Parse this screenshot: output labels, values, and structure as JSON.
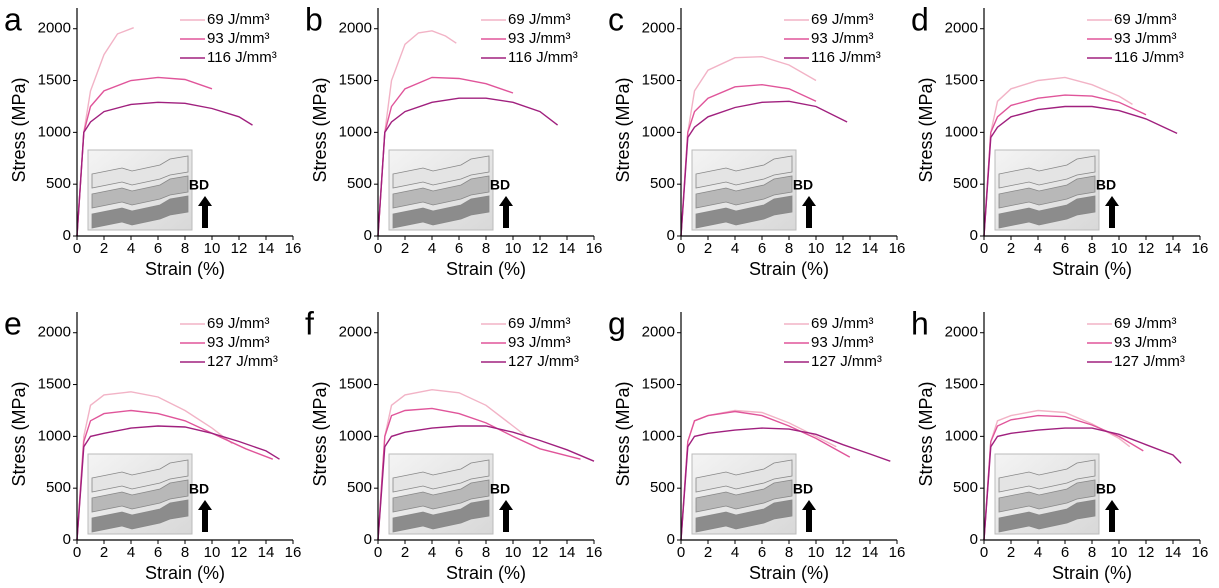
{
  "chart_data": [
    {
      "type": "line",
      "label": "a",
      "annotation": "BD",
      "xlabel": "Strain (%)",
      "ylabel": "Stress (MPa)",
      "xlim": [
        0,
        16
      ],
      "ylim": [
        0,
        2200
      ],
      "xticks": [
        0,
        2,
        4,
        6,
        8,
        10,
        12,
        14,
        16
      ],
      "yticks": [
        0,
        500,
        1000,
        1500,
        2000
      ],
      "series": [
        {
          "name": "69 J/mm³",
          "color": "#f2b3c6",
          "x": [
            0,
            0.5,
            1,
            2,
            3,
            4.2
          ],
          "values": [
            0,
            1000,
            1400,
            1750,
            1950,
            2010
          ]
        },
        {
          "name": "93 J/mm³",
          "color": "#e0559a",
          "x": [
            0,
            0.5,
            1,
            2,
            4,
            6,
            8,
            10
          ],
          "values": [
            0,
            1000,
            1250,
            1400,
            1500,
            1530,
            1510,
            1420
          ]
        },
        {
          "name": "116 J/mm³",
          "color": "#a0207e",
          "x": [
            0,
            0.5,
            1,
            2,
            4,
            6,
            8,
            10,
            12,
            13
          ],
          "values": [
            0,
            1000,
            1100,
            1200,
            1270,
            1290,
            1280,
            1230,
            1150,
            1070
          ]
        }
      ]
    },
    {
      "type": "line",
      "label": "b",
      "annotation": "BD",
      "xlabel": "Strain (%)",
      "ylabel": "Stress (MPa)",
      "xlim": [
        0,
        16
      ],
      "ylim": [
        0,
        2200
      ],
      "xticks": [
        0,
        2,
        4,
        6,
        8,
        10,
        12,
        14,
        16
      ],
      "yticks": [
        0,
        500,
        1000,
        1500,
        2000
      ],
      "series": [
        {
          "name": "69 J/mm³",
          "color": "#f2b3c6",
          "x": [
            0,
            0.5,
            1,
            2,
            3,
            4,
            5,
            5.8
          ],
          "values": [
            0,
            1000,
            1500,
            1850,
            1960,
            1980,
            1930,
            1860
          ]
        },
        {
          "name": "93 J/mm³",
          "color": "#e0559a",
          "x": [
            0,
            0.5,
            1,
            2,
            4,
            6,
            8,
            10
          ],
          "values": [
            0,
            1000,
            1250,
            1420,
            1530,
            1520,
            1470,
            1380
          ]
        },
        {
          "name": "116 J/mm³",
          "color": "#a0207e",
          "x": [
            0,
            0.5,
            1,
            2,
            4,
            6,
            8,
            10,
            12,
            13.3
          ],
          "values": [
            0,
            1000,
            1100,
            1200,
            1290,
            1330,
            1330,
            1290,
            1200,
            1070
          ]
        }
      ]
    },
    {
      "type": "line",
      "label": "c",
      "annotation": "BD",
      "xlabel": "Strain (%)",
      "ylabel": "Stress (MPa)",
      "xlim": [
        0,
        16
      ],
      "ylim": [
        0,
        2200
      ],
      "xticks": [
        0,
        2,
        4,
        6,
        8,
        10,
        12,
        14,
        16
      ],
      "yticks": [
        0,
        500,
        1000,
        1500,
        2000
      ],
      "series": [
        {
          "name": "69 J/mm³",
          "color": "#f2b3c6",
          "x": [
            0,
            0.5,
            1,
            2,
            4,
            6,
            8,
            10
          ],
          "values": [
            0,
            1000,
            1400,
            1600,
            1720,
            1730,
            1650,
            1500
          ]
        },
        {
          "name": "93 J/mm³",
          "color": "#e0559a",
          "x": [
            0,
            0.5,
            1,
            2,
            4,
            6,
            8,
            10
          ],
          "values": [
            0,
            1000,
            1200,
            1330,
            1440,
            1460,
            1420,
            1300
          ]
        },
        {
          "name": "116 J/mm³",
          "color": "#a0207e",
          "x": [
            0,
            0.5,
            1,
            2,
            4,
            6,
            8,
            10,
            12.3
          ],
          "values": [
            0,
            950,
            1050,
            1150,
            1240,
            1290,
            1300,
            1250,
            1100
          ]
        }
      ]
    },
    {
      "type": "line",
      "label": "d",
      "annotation": "BD",
      "xlabel": "Strain (%)",
      "ylabel": "Stress (MPa)",
      "xlim": [
        0,
        16
      ],
      "ylim": [
        0,
        2200
      ],
      "xticks": [
        0,
        2,
        4,
        6,
        8,
        10,
        12,
        14,
        16
      ],
      "yticks": [
        0,
        500,
        1000,
        1500,
        2000
      ],
      "series": [
        {
          "name": "69 J/mm³",
          "color": "#f2b3c6",
          "x": [
            0,
            0.5,
            1,
            2,
            4,
            6,
            8,
            10,
            11
          ],
          "values": [
            0,
            1000,
            1300,
            1420,
            1500,
            1530,
            1460,
            1350,
            1270
          ]
        },
        {
          "name": "93 J/mm³",
          "color": "#e0559a",
          "x": [
            0,
            0.5,
            1,
            2,
            4,
            6,
            8,
            10,
            12
          ],
          "values": [
            0,
            1000,
            1150,
            1260,
            1330,
            1360,
            1350,
            1290,
            1170
          ]
        },
        {
          "name": "116 J/mm³",
          "color": "#a0207e",
          "x": [
            0,
            0.5,
            1,
            2,
            4,
            6,
            8,
            10,
            12,
            14.3
          ],
          "values": [
            0,
            950,
            1050,
            1150,
            1220,
            1250,
            1250,
            1210,
            1130,
            990
          ]
        }
      ]
    },
    {
      "type": "line",
      "label": "e",
      "annotation": "BD",
      "xlabel": "Strain (%)",
      "ylabel": "Stress (MPa)",
      "xlim": [
        0,
        16
      ],
      "ylim": [
        0,
        2200
      ],
      "xticks": [
        0,
        2,
        4,
        6,
        8,
        10,
        12,
        14,
        16
      ],
      "yticks": [
        0,
        500,
        1000,
        1500,
        2000
      ],
      "series": [
        {
          "name": "69 J/mm³",
          "color": "#f2b3c6",
          "x": [
            0,
            0.5,
            1,
            2,
            4,
            6,
            8,
            10,
            11.5
          ],
          "values": [
            0,
            1000,
            1300,
            1400,
            1430,
            1380,
            1250,
            1080,
            930
          ]
        },
        {
          "name": "93 J/mm³",
          "color": "#e0559a",
          "x": [
            0,
            0.5,
            1,
            2,
            4,
            6,
            8,
            10,
            12.5,
            14.5
          ],
          "values": [
            0,
            950,
            1150,
            1220,
            1250,
            1220,
            1150,
            1030,
            880,
            780
          ]
        },
        {
          "name": "127 J/mm³",
          "color": "#a0207e",
          "x": [
            0,
            0.5,
            1,
            2,
            4,
            6,
            8,
            10,
            12,
            14,
            15
          ],
          "values": [
            0,
            900,
            1000,
            1030,
            1080,
            1100,
            1090,
            1030,
            950,
            860,
            780
          ]
        }
      ]
    },
    {
      "type": "line",
      "label": "f",
      "annotation": "BD",
      "xlabel": "Strain (%)",
      "ylabel": "Stress (MPa)",
      "xlim": [
        0,
        16
      ],
      "ylim": [
        0,
        2200
      ],
      "xticks": [
        0,
        2,
        4,
        6,
        8,
        10,
        12,
        14,
        16
      ],
      "yticks": [
        0,
        500,
        1000,
        1500,
        2000
      ],
      "series": [
        {
          "name": "69 J/mm³",
          "color": "#f2b3c6",
          "x": [
            0,
            0.5,
            1,
            2,
            4,
            6,
            8,
            10,
            11
          ],
          "values": [
            0,
            1000,
            1300,
            1400,
            1450,
            1420,
            1300,
            1100,
            1000
          ]
        },
        {
          "name": "93 J/mm³",
          "color": "#e0559a",
          "x": [
            0,
            0.5,
            1,
            2,
            4,
            6,
            8,
            10,
            12,
            15
          ],
          "values": [
            0,
            1000,
            1200,
            1250,
            1270,
            1220,
            1130,
            1000,
            880,
            780
          ]
        },
        {
          "name": "127 J/mm³",
          "color": "#a0207e",
          "x": [
            0,
            0.5,
            1,
            2,
            4,
            6,
            8,
            10,
            12,
            14,
            16
          ],
          "values": [
            0,
            900,
            1000,
            1040,
            1080,
            1100,
            1100,
            1040,
            960,
            870,
            760
          ]
        }
      ]
    },
    {
      "type": "line",
      "label": "g",
      "annotation": "BD",
      "xlabel": "Strain (%)",
      "ylabel": "Stress (MPa)",
      "xlim": [
        0,
        16
      ],
      "ylim": [
        0,
        2200
      ],
      "xticks": [
        0,
        2,
        4,
        6,
        8,
        10,
        12,
        14,
        16
      ],
      "yticks": [
        0,
        500,
        1000,
        1500,
        2000
      ],
      "series": [
        {
          "name": "69 J/mm³",
          "color": "#f2b3c6",
          "x": [
            0,
            0.5,
            1,
            2,
            4,
            6,
            8,
            10,
            11.5
          ],
          "values": [
            0,
            950,
            1150,
            1200,
            1250,
            1230,
            1130,
            1000,
            900
          ]
        },
        {
          "name": "93 J/mm³",
          "color": "#e0559a",
          "x": [
            0,
            0.5,
            1,
            2,
            4,
            6,
            8,
            10,
            12.5
          ],
          "values": [
            0,
            950,
            1150,
            1200,
            1240,
            1200,
            1100,
            980,
            800
          ]
        },
        {
          "name": "127 J/mm³",
          "color": "#a0207e",
          "x": [
            0,
            0.5,
            1,
            2,
            4,
            6,
            8,
            10,
            12,
            14,
            15.5
          ],
          "values": [
            0,
            900,
            1000,
            1030,
            1060,
            1080,
            1070,
            1020,
            920,
            830,
            760
          ]
        }
      ]
    },
    {
      "type": "line",
      "label": "h",
      "annotation": "BD",
      "xlabel": "Strain (%)",
      "ylabel": "Stress (MPa)",
      "xlim": [
        0,
        16
      ],
      "ylim": [
        0,
        2200
      ],
      "xticks": [
        0,
        2,
        4,
        6,
        8,
        10,
        12,
        14,
        16
      ],
      "yticks": [
        0,
        500,
        1000,
        1500,
        2000
      ],
      "series": [
        {
          "name": "69 J/mm³",
          "color": "#f2b3c6",
          "x": [
            0,
            0.5,
            1,
            2,
            4,
            6,
            8,
            10,
            10.8
          ],
          "values": [
            0,
            950,
            1150,
            1200,
            1250,
            1230,
            1120,
            980,
            900
          ]
        },
        {
          "name": "93 J/mm³",
          "color": "#e0559a",
          "x": [
            0,
            0.5,
            1,
            2,
            4,
            6,
            8,
            10,
            11.8
          ],
          "values": [
            0,
            950,
            1100,
            1160,
            1200,
            1190,
            1110,
            1000,
            860
          ]
        },
        {
          "name": "127 J/mm³",
          "color": "#a0207e",
          "x": [
            0,
            0.5,
            1,
            2,
            4,
            6,
            8,
            10,
            12,
            14,
            14.6
          ],
          "values": [
            0,
            900,
            1000,
            1030,
            1060,
            1080,
            1080,
            1020,
            920,
            820,
            740
          ]
        }
      ]
    }
  ]
}
